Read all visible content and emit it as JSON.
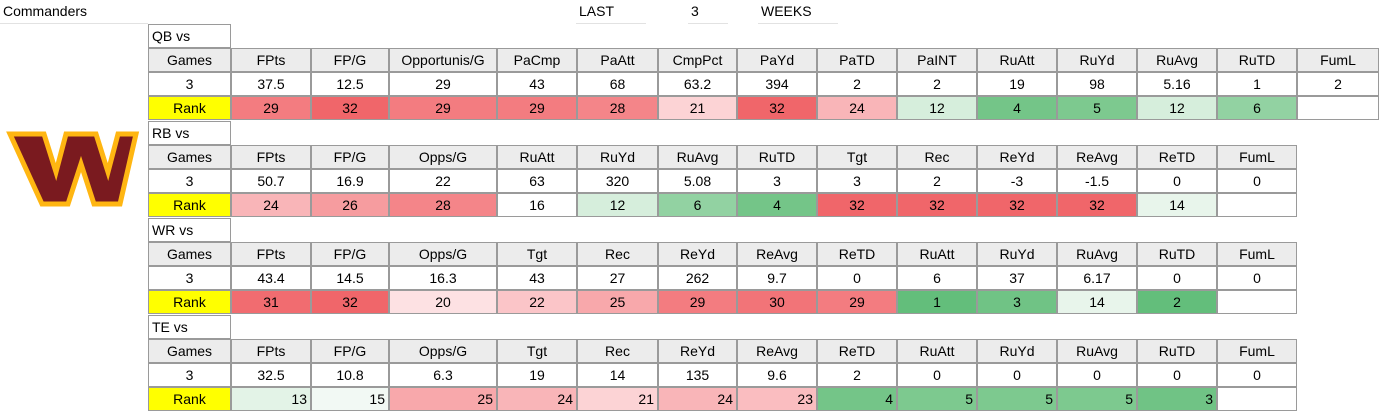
{
  "team": "Commanders",
  "period": [
    "LAST",
    "3",
    "WEEKS"
  ],
  "logo_icon": "commanders-w-logo",
  "colors": {
    "header_fill": "#ececec",
    "rank_label_fill": "#ffff00",
    "rank_scale": {
      "1": "#63be7b",
      "2": "#63be7b",
      "3": "#70c385",
      "4": "#74c588",
      "5": "#7dc98f",
      "6": "#92d2a2",
      "12": "#d6eedc",
      "13": "#e3f3e7",
      "14": "#e8f5eb",
      "15": "#f2f9f4",
      "16": "#ffffff",
      "20": "#fde1e3",
      "21": "#fcd3d5",
      "22": "#fbc5c8",
      "23": "#fabdc0",
      "24": "#f9b5b8",
      "25": "#f8a8ab",
      "26": "#f69c9f",
      "28": "#f48589",
      "29": "#f37c80",
      "30": "#f27478",
      "31": "#f16c70",
      "32": "#f0666a"
    }
  },
  "sections": [
    {
      "title": "QB vs",
      "headers": [
        "Games",
        "FPts",
        "FP/G",
        "Opportunis/G",
        "PaCmp",
        "PaAtt",
        "CmpPct",
        "PaYd",
        "PaTD",
        "PaINT",
        "RuAtt",
        "RuYd",
        "RuAvg",
        "RuTD",
        "FumL"
      ],
      "values": [
        "3",
        "37.5",
        "12.5",
        "29",
        "43",
        "68",
        "63.2",
        "394",
        "2",
        "2",
        "19",
        "98",
        "5.16",
        "1",
        "2"
      ],
      "rank_label": "Rank",
      "ranks": [
        "29",
        "32",
        "29",
        "29",
        "28",
        "21",
        "32",
        "24",
        "12",
        "4",
        "5",
        "12",
        "6"
      ],
      "rank_align": "center"
    },
    {
      "title": "RB vs",
      "headers": [
        "Games",
        "FPts",
        "FP/G",
        "Opps/G",
        "RuAtt",
        "RuYd",
        "RuAvg",
        "RuTD",
        "Tgt",
        "Rec",
        "ReYd",
        "ReAvg",
        "ReTD",
        "FumL"
      ],
      "values": [
        "3",
        "50.7",
        "16.9",
        "22",
        "63",
        "320",
        "5.08",
        "3",
        "3",
        "2",
        "-3",
        "-1.5",
        "0",
        "0"
      ],
      "rank_label": "Rank",
      "ranks": [
        "24",
        "26",
        "28",
        "16",
        "12",
        "6",
        "4",
        "32",
        "32",
        "32",
        "32",
        "14"
      ],
      "rank_align": "center"
    },
    {
      "title": "WR vs",
      "headers": [
        "Games",
        "FPts",
        "FP/G",
        "Opps/G",
        "Tgt",
        "Rec",
        "ReYd",
        "ReAvg",
        "ReTD",
        "RuAtt",
        "RuYd",
        "RuAvg",
        "RuTD",
        "FumL"
      ],
      "values": [
        "3",
        "43.4",
        "14.5",
        "16.3",
        "43",
        "27",
        "262",
        "9.7",
        "0",
        "6",
        "37",
        "6.17",
        "0",
        "0"
      ],
      "rank_label": "Rank",
      "ranks": [
        "31",
        "32",
        "20",
        "22",
        "25",
        "29",
        "30",
        "29",
        "1",
        "3",
        "14",
        "2"
      ],
      "rank_align": "center"
    },
    {
      "title": "TE vs",
      "headers": [
        "Games",
        "FPts",
        "FP/G",
        "Opps/G",
        "Tgt",
        "Rec",
        "ReYd",
        "ReAvg",
        "ReTD",
        "RuAtt",
        "RuYd",
        "RuAvg",
        "RuTD",
        "FumL"
      ],
      "values": [
        "3",
        "32.5",
        "10.8",
        "6.3",
        "19",
        "14",
        "135",
        "9.6",
        "2",
        "0",
        "0",
        "0",
        "0",
        "0"
      ],
      "rank_label": "Rank",
      "ranks": [
        "13",
        "15",
        "25",
        "24",
        "21",
        "24",
        "23",
        "4",
        "5",
        "5",
        "5",
        "3"
      ],
      "rank_align": "right"
    }
  ]
}
